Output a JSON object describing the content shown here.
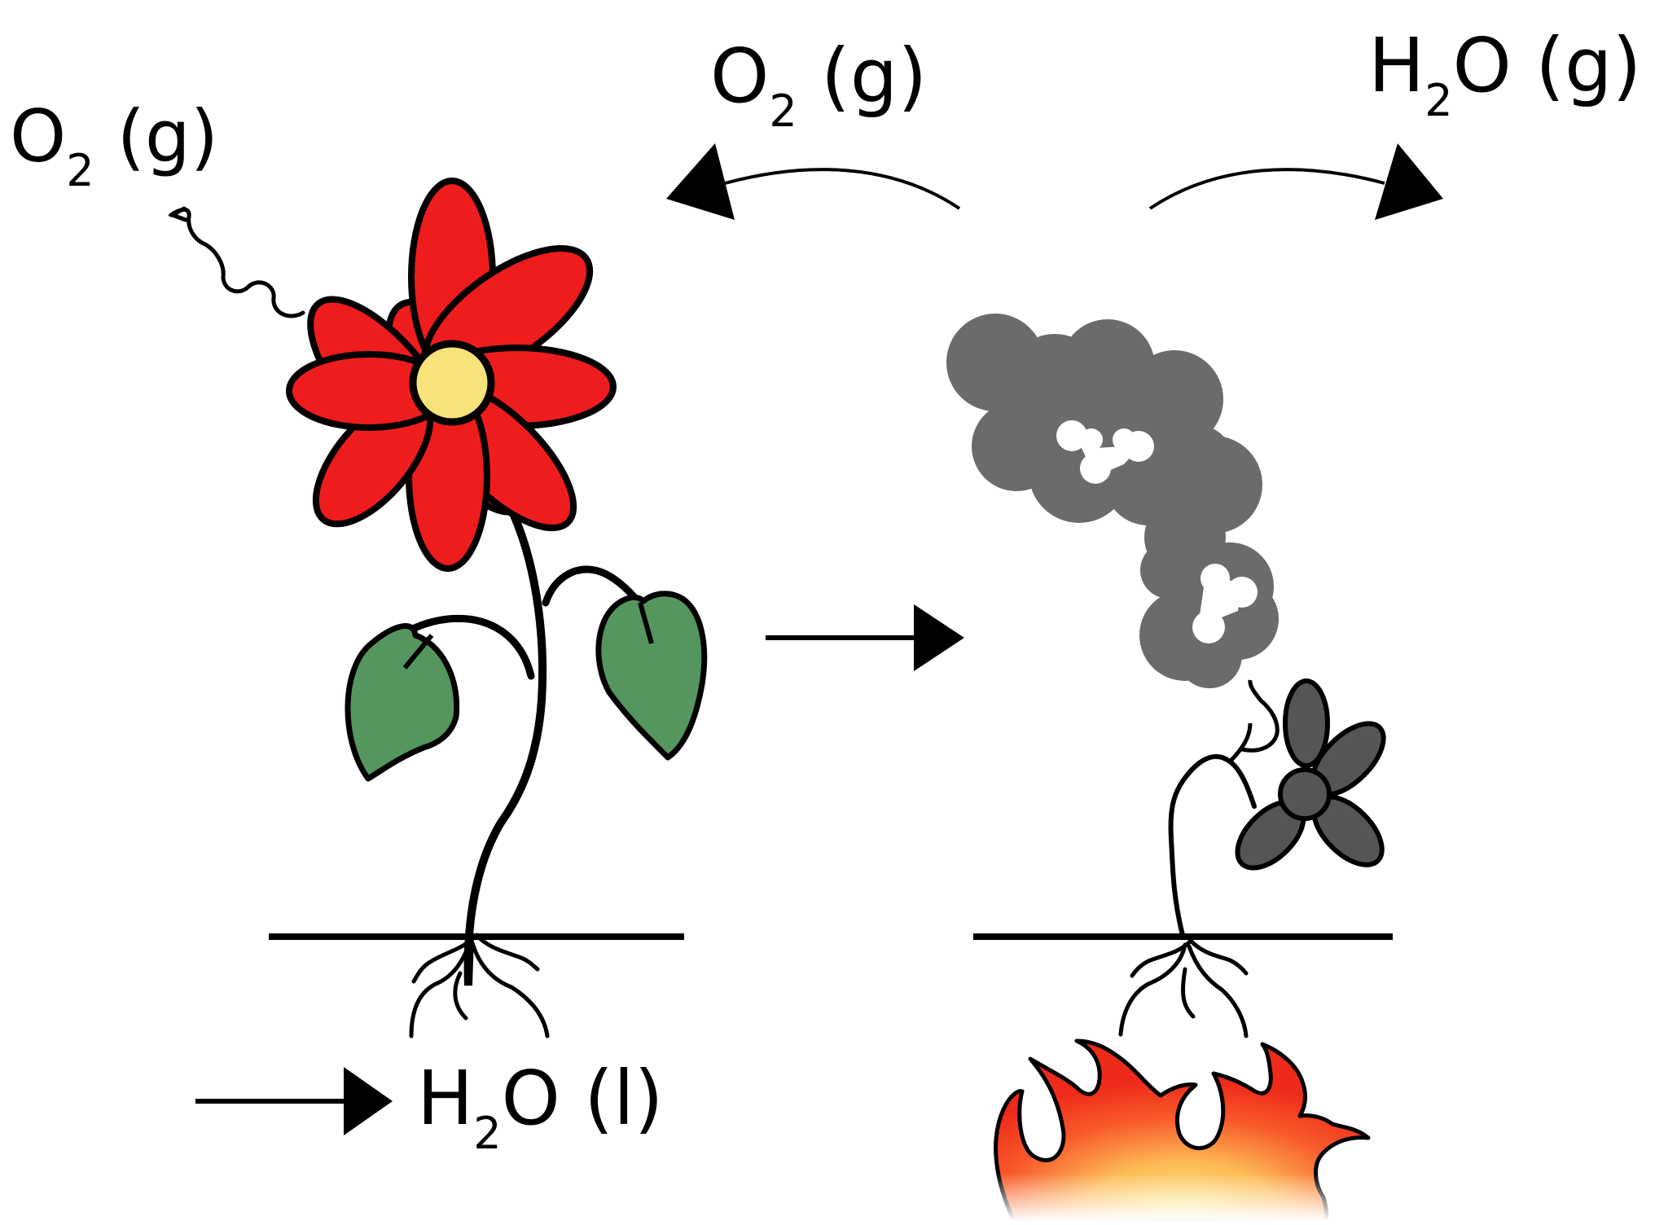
{
  "labels": {
    "o2_left": {
      "main": "O",
      "sub": "2",
      "phase": " (g)"
    },
    "o2_top": {
      "main": "O",
      "sub": "2",
      "phase": " (g)"
    },
    "h2o_top": {
      "pre": "H",
      "sub": "2",
      "post": "O",
      "phase": " (g)"
    },
    "h2o_bottom": {
      "pre": "H",
      "sub": "2",
      "post": "O",
      "phase": " (l)"
    }
  },
  "colors": {
    "petal": "#ee1c1c",
    "flower_center": "#f8e27a",
    "leaf": "#55965e",
    "smoke": "#6b6b6b",
    "burnt_flower": "#555555",
    "fire_outer": "#ee2a1a",
    "fire_inner": "#fbe27a",
    "ink": "#000000"
  },
  "icons": [
    "healthy-flower-icon",
    "burnt-flower-icon",
    "smoke-cloud-icon",
    "fire-icon",
    "arrow-icon"
  ]
}
